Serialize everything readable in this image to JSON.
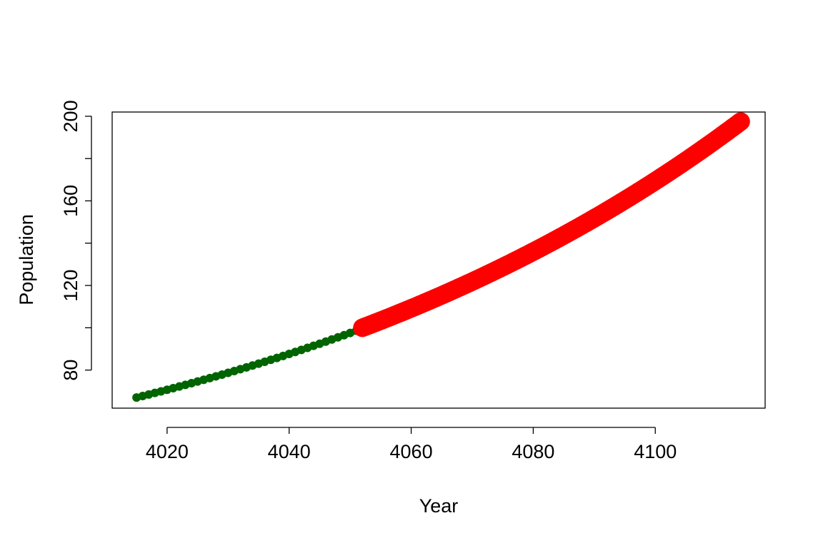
{
  "chart_data": {
    "type": "scatter",
    "title": "",
    "xlabel": "Year",
    "ylabel": "Population",
    "xlim": [
      4011,
      4118
    ],
    "ylim": [
      62,
      202
    ],
    "x_ticks": [
      4020,
      4040,
      4060,
      4080,
      4100
    ],
    "y_ticks": [
      80,
      120,
      160,
      200
    ],
    "grid": false,
    "series": [
      {
        "color": "#006400",
        "x_start": 4015,
        "x_end": 4051,
        "x_step": 1,
        "y_start": 67,
        "y_end": 98.6,
        "marker_size": "small"
      },
      {
        "color": "#ff0000",
        "x_start": 4052,
        "x_end": 4114,
        "x_step": 0.25,
        "y_start": 100,
        "y_end": 197.5,
        "marker_size": "large"
      }
    ]
  }
}
